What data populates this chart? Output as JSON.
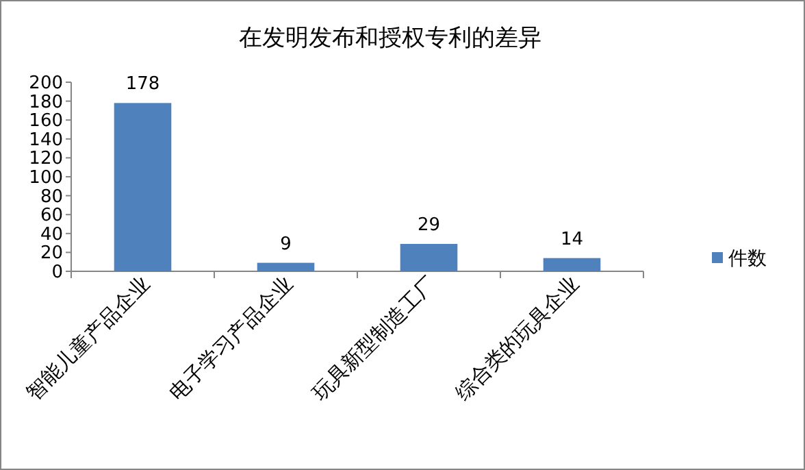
{
  "chart_data": {
    "type": "bar",
    "title": "在发明发布和授权专利的差异",
    "categories": [
      "智能儿童产品企业",
      "电子学习产品企业",
      "玩具新型制造工厂",
      "综合类的玩具企业"
    ],
    "series": [
      {
        "name": "件数",
        "color": "#4f81bd",
        "values": [
          178,
          9,
          29,
          14
        ]
      }
    ],
    "ylim": [
      0,
      200
    ],
    "yticks": [
      0,
      20,
      40,
      60,
      80,
      100,
      120,
      140,
      160,
      180,
      200
    ],
    "data_labels": true,
    "legend": "right"
  }
}
